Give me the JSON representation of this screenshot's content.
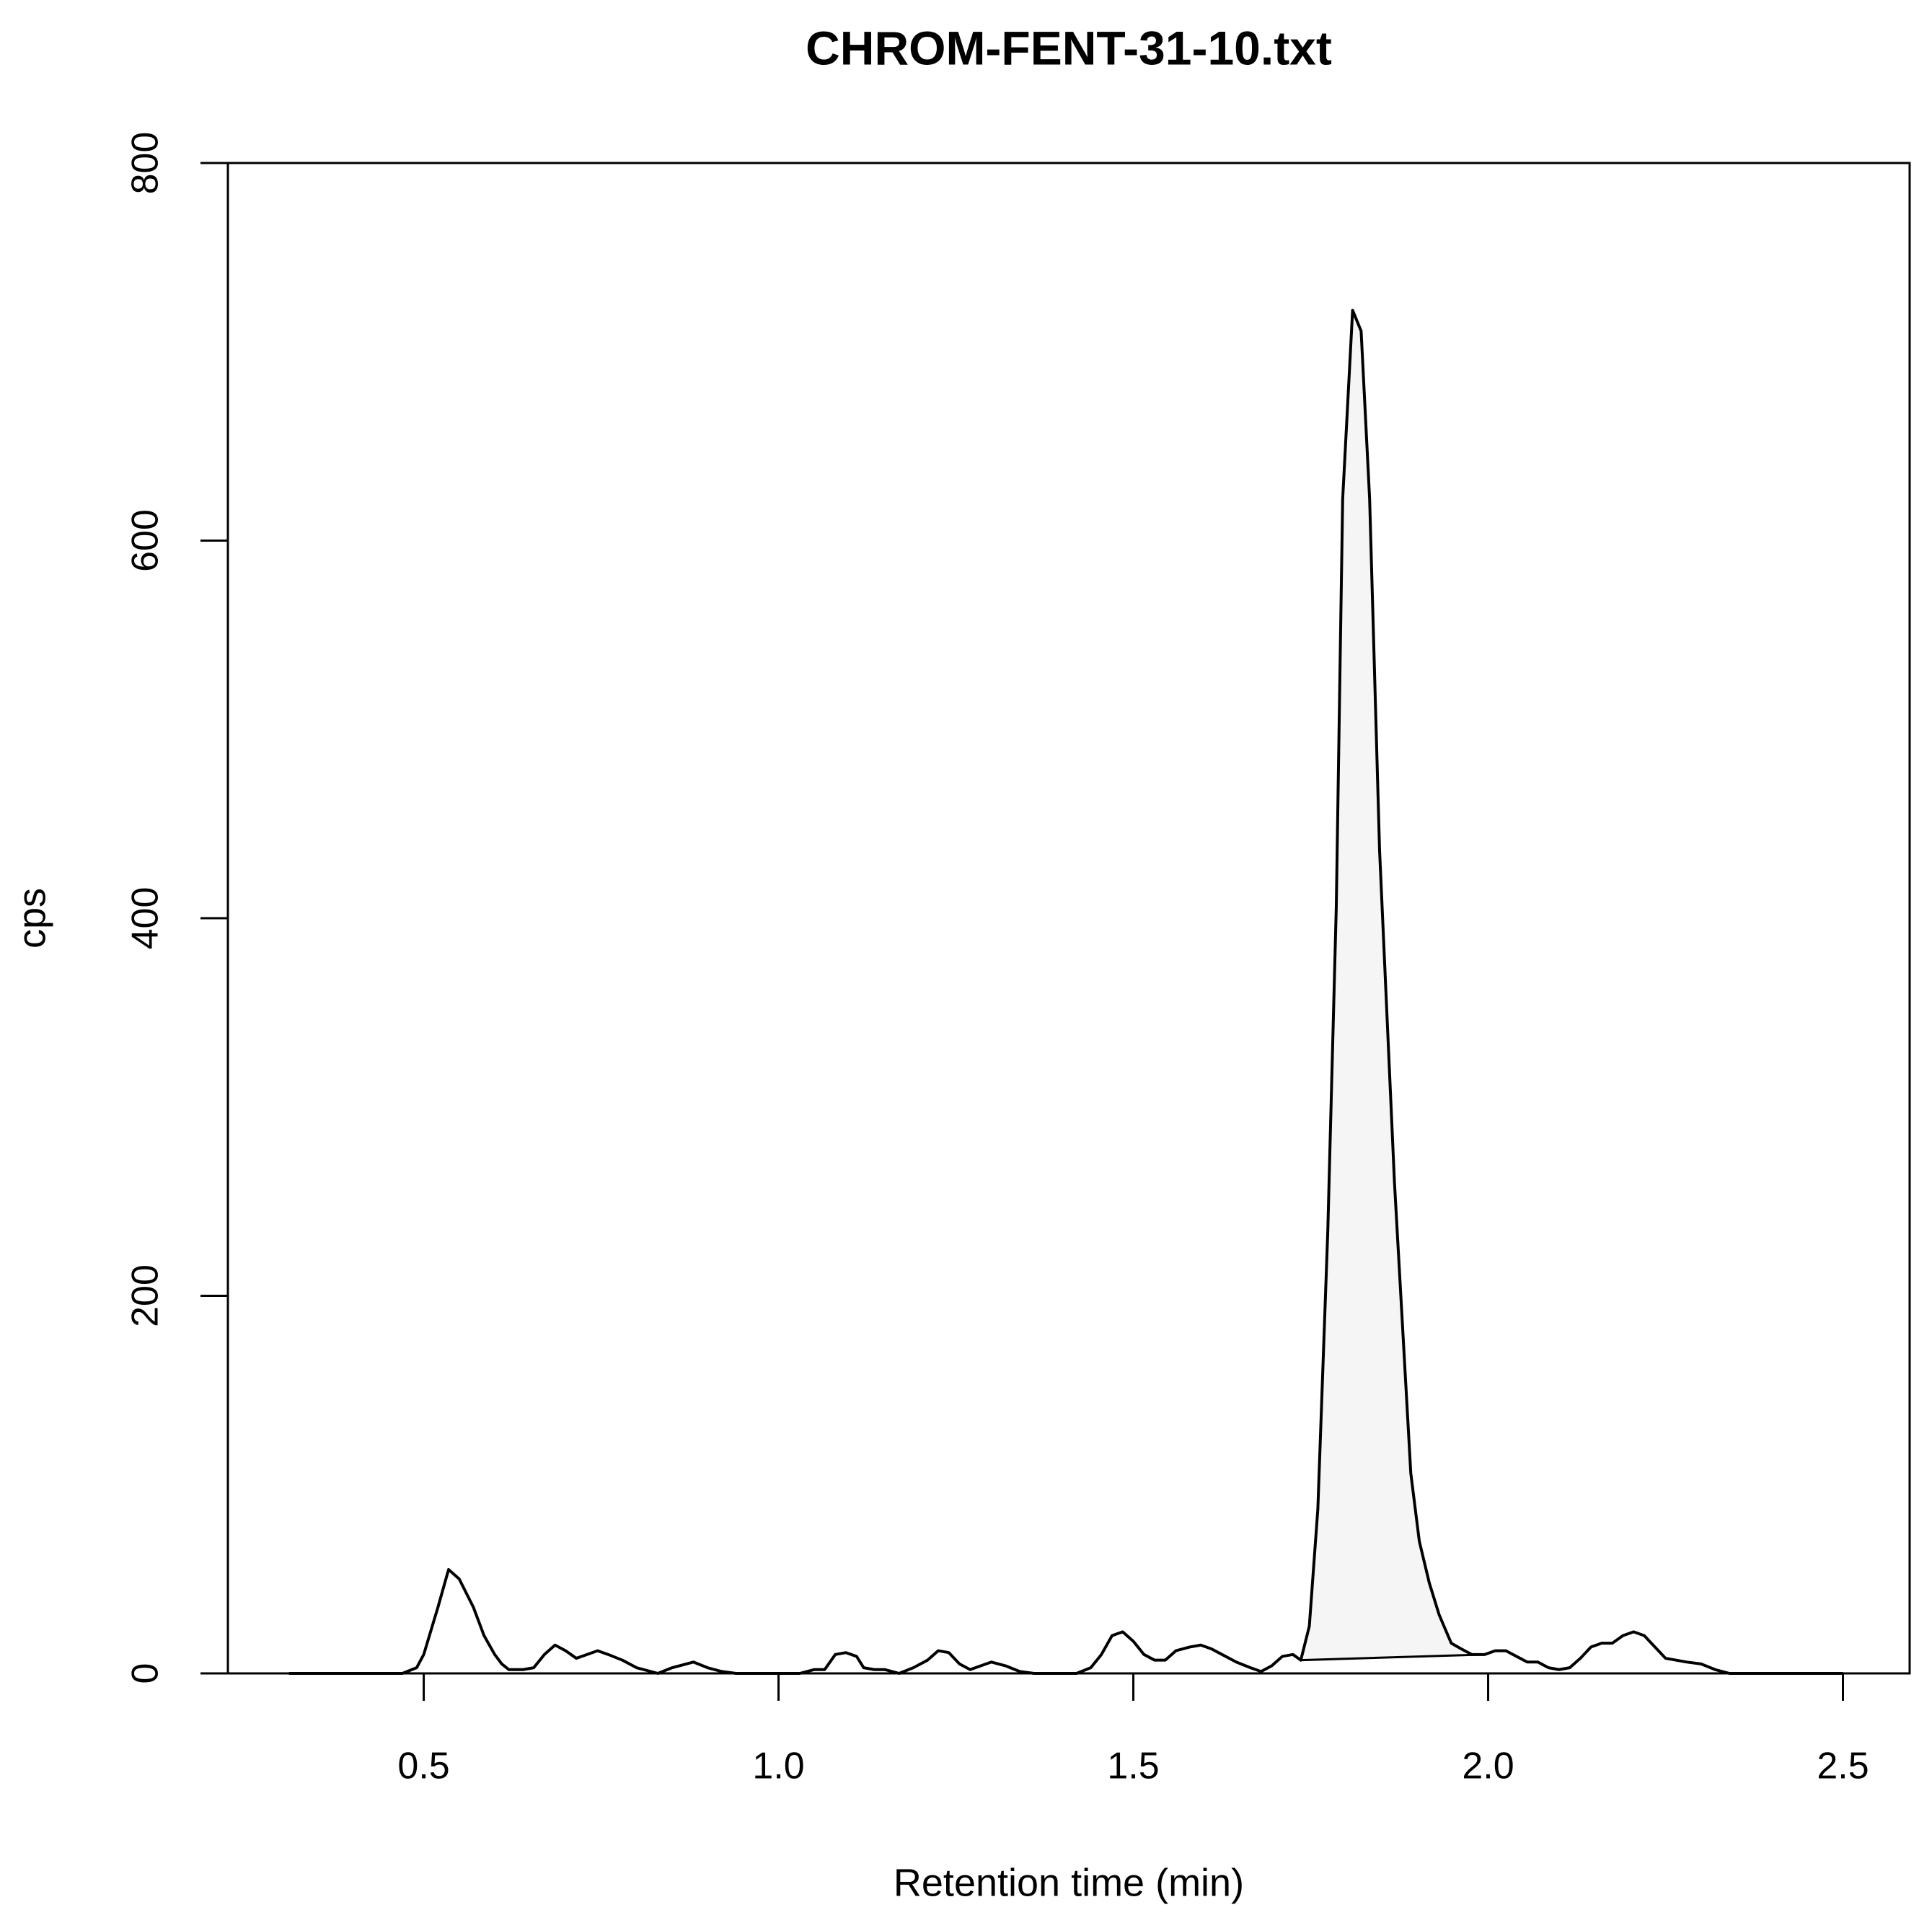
{
  "chart_data": {
    "type": "line",
    "title": "CHROM-FENT-31-10.txt",
    "xlabel": "Retention time (min)",
    "ylabel": "cps",
    "x": [
      0.31,
      0.47,
      0.49,
      0.5,
      0.52,
      0.535,
      0.55,
      0.57,
      0.585,
      0.6,
      0.61,
      0.62,
      0.64,
      0.655,
      0.67,
      0.685,
      0.7,
      0.715,
      0.73,
      0.745,
      0.76,
      0.78,
      0.8,
      0.83,
      0.85,
      0.87,
      0.88,
      0.9,
      0.92,
      0.94,
      1.03,
      1.05,
      1.065,
      1.08,
      1.095,
      1.11,
      1.12,
      1.135,
      1.15,
      1.17,
      1.19,
      1.21,
      1.225,
      1.24,
      1.255,
      1.27,
      1.285,
      1.3,
      1.32,
      1.34,
      1.36,
      1.42,
      1.44,
      1.455,
      1.47,
      1.485,
      1.5,
      1.515,
      1.53,
      1.545,
      1.56,
      1.58,
      1.595,
      1.61,
      1.625,
      1.645,
      1.665,
      1.68,
      1.695,
      1.71,
      1.725,
      1.736,
      1.748,
      1.76,
      1.774,
      1.786,
      1.795,
      1.809,
      1.821,
      1.833,
      1.847,
      1.868,
      1.891,
      1.903,
      1.917,
      1.931,
      1.948,
      1.962,
      1.977,
      1.995,
      2.01,
      2.025,
      2.04,
      2.055,
      2.07,
      2.085,
      2.1,
      2.115,
      2.13,
      2.145,
      2.16,
      2.175,
      2.19,
      2.205,
      2.22,
      2.235,
      2.25,
      2.265,
      2.28,
      2.3,
      2.32,
      2.34,
      2.5
    ],
    "series": [
      {
        "color": "#000000",
        "values": [
          0,
          0,
          3,
          10,
          35,
          55,
          50,
          35,
          20,
          10,
          5,
          2,
          2,
          3,
          10,
          15,
          12,
          8,
          10,
          12,
          10,
          7,
          3,
          0,
          3,
          5,
          6,
          3,
          1,
          0,
          0,
          2,
          2,
          10,
          11,
          9,
          3,
          2,
          2,
          0,
          3,
          7,
          12,
          11,
          5,
          2,
          4,
          6,
          4,
          1,
          0,
          0,
          3,
          10,
          20,
          22,
          17,
          10,
          7,
          7,
          12,
          14,
          15,
          13,
          10,
          6,
          3,
          1,
          4,
          9,
          10,
          7,
          25,
          87,
          234,
          406,
          622,
          722,
          711,
          622,
          436,
          260,
          106,
          70,
          48,
          31,
          16,
          13,
          10,
          10,
          12,
          12,
          9,
          6,
          6,
          3,
          2,
          3,
          8,
          14,
          16,
          16,
          20,
          22,
          20,
          14,
          8,
          7,
          6,
          5,
          2,
          0,
          0
        ]
      }
    ],
    "shaded_range": [
      1.736,
      1.995
    ],
    "shade_color": "#f5f5f5",
    "xlim": [
      0.224,
      2.594
    ],
    "ylim": [
      0,
      800
    ],
    "xticks": [
      {
        "value": 0.5,
        "label": "0.5"
      },
      {
        "value": 1.0,
        "label": "1.0"
      },
      {
        "value": 1.5,
        "label": "1.5"
      },
      {
        "value": 2.0,
        "label": "2.0"
      },
      {
        "value": 2.5,
        "label": "2.5"
      }
    ],
    "yticks": [
      0,
      200,
      400,
      600,
      800
    ]
  }
}
